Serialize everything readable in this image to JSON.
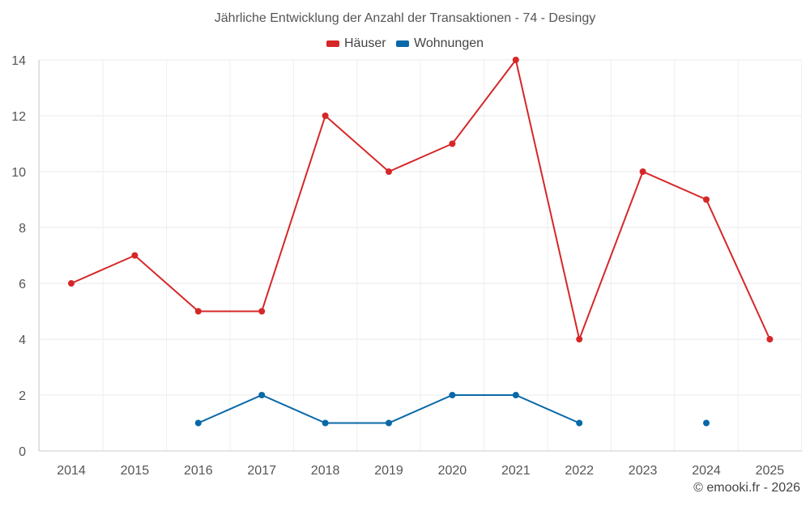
{
  "chart_data": {
    "type": "line",
    "title": "Jährliche Entwicklung der Anzahl der Transaktionen - 74 - Desingy",
    "categories": [
      "2014",
      "2015",
      "2016",
      "2017",
      "2018",
      "2019",
      "2020",
      "2021",
      "2022",
      "2023",
      "2024",
      "2025"
    ],
    "series": [
      {
        "name": "Häuser",
        "color": "#d62728",
        "values": [
          6,
          7,
          5,
          5,
          12,
          10,
          11,
          14,
          4,
          10,
          9,
          4
        ]
      },
      {
        "name": "Wohnungen",
        "color": "#0868a8",
        "values": [
          null,
          null,
          1,
          2,
          1,
          1,
          2,
          2,
          1,
          null,
          1,
          null
        ]
      }
    ],
    "ylim": [
      0,
      14
    ],
    "yticks": [
      0,
      2,
      4,
      6,
      8,
      10,
      12,
      14
    ],
    "grid": true,
    "legend": "top-center"
  },
  "credit": "© emooki.fr - 2026"
}
